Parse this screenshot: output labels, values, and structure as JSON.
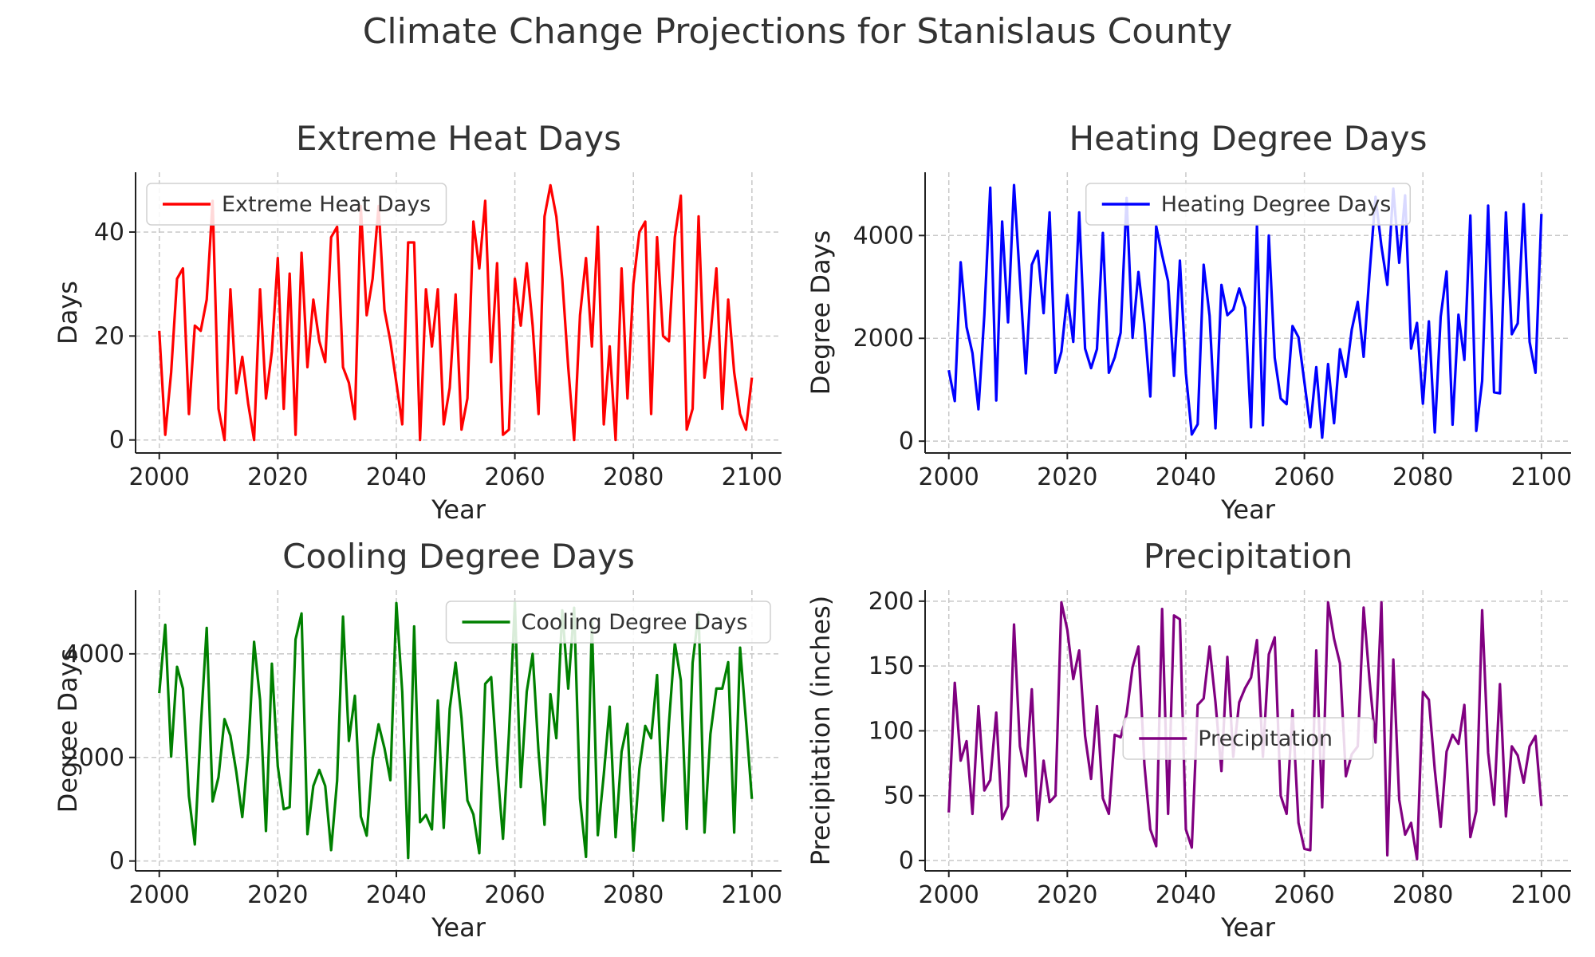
{
  "figure": {
    "title": "Climate Change Projections for Stanislaus County"
  },
  "chart_data": [
    {
      "type": "line",
      "title": "Extreme Heat Days",
      "xlabel": "Year",
      "ylabel": "Days",
      "color": "#ff0000",
      "legend": {
        "label": "Extreme Heat Days",
        "placement": "upper-left"
      },
      "grid": true,
      "xlim": [
        1996,
        2105
      ],
      "ylim": [
        -2.5,
        51.5
      ],
      "xticks": [
        2000,
        2020,
        2040,
        2060,
        2080,
        2100
      ],
      "yticks": [
        0,
        20,
        40
      ],
      "x": [
        2000,
        2001,
        2002,
        2003,
        2004,
        2005,
        2006,
        2007,
        2008,
        2009,
        2010,
        2011,
        2012,
        2013,
        2014,
        2015,
        2016,
        2017,
        2018,
        2019,
        2020,
        2021,
        2022,
        2023,
        2024,
        2025,
        2026,
        2027,
        2028,
        2029,
        2030,
        2031,
        2032,
        2033,
        2034,
        2035,
        2036,
        2037,
        2038,
        2039,
        2040,
        2041,
        2042,
        2043,
        2044,
        2045,
        2046,
        2047,
        2048,
        2049,
        2050,
        2051,
        2052,
        2053,
        2054,
        2055,
        2056,
        2057,
        2058,
        2059,
        2060,
        2061,
        2062,
        2063,
        2064,
        2065,
        2066,
        2067,
        2068,
        2069,
        2070,
        2071,
        2072,
        2073,
        2074,
        2075,
        2076,
        2077,
        2078,
        2079,
        2080,
        2081,
        2082,
        2083,
        2084,
        2085,
        2086,
        2087,
        2088,
        2089,
        2090,
        2091,
        2092,
        2093,
        2094,
        2095,
        2096,
        2097,
        2098,
        2099,
        2100
      ],
      "values": [
        21,
        1,
        13,
        31,
        33,
        5,
        22,
        21,
        27,
        46,
        6,
        0,
        29,
        9,
        16,
        7,
        0,
        29,
        8,
        17,
        35,
        6,
        32,
        1,
        36,
        14,
        27,
        19,
        15,
        39,
        41,
        14,
        11,
        4,
        45,
        24,
        31,
        45,
        25,
        19,
        11,
        3,
        38,
        38,
        0,
        29,
        18,
        29,
        3,
        10,
        28,
        2,
        8,
        42,
        33,
        46,
        15,
        34,
        1,
        2,
        31,
        22,
        34,
        22,
        5,
        43,
        49,
        43,
        31,
        14,
        0,
        24,
        35,
        18,
        41,
        3,
        18,
        0,
        33,
        8,
        30,
        40,
        42,
        5,
        39,
        20,
        19,
        39,
        47,
        2,
        6,
        43,
        12,
        20,
        33,
        6,
        27,
        13,
        5,
        2,
        12
      ]
    },
    {
      "type": "line",
      "title": "Heating Degree Days",
      "xlabel": "Year",
      "ylabel": "Degree Days",
      "color": "#0000ff",
      "legend": {
        "label": "Heating Degree Days",
        "placement": "upper-center"
      },
      "grid": true,
      "xlim": [
        1996,
        2105
      ],
      "ylim": [
        -230,
        5230
      ],
      "xticks": [
        2000,
        2020,
        2040,
        2060,
        2080,
        2100
      ],
      "yticks": [
        0,
        2000,
        4000
      ],
      "x": [
        2000,
        2001,
        2002,
        2003,
        2004,
        2005,
        2006,
        2007,
        2008,
        2009,
        2010,
        2011,
        2012,
        2013,
        2014,
        2015,
        2016,
        2017,
        2018,
        2019,
        2020,
        2021,
        2022,
        2023,
        2024,
        2025,
        2026,
        2027,
        2028,
        2029,
        2030,
        2031,
        2032,
        2033,
        2034,
        2035,
        2036,
        2037,
        2038,
        2039,
        2040,
        2041,
        2042,
        2043,
        2044,
        2045,
        2046,
        2047,
        2048,
        2049,
        2050,
        2051,
        2052,
        2053,
        2054,
        2055,
        2056,
        2057,
        2058,
        2059,
        2060,
        2061,
        2062,
        2063,
        2064,
        2065,
        2066,
        2067,
        2068,
        2069,
        2070,
        2071,
        2072,
        2073,
        2074,
        2075,
        2076,
        2077,
        2078,
        2079,
        2080,
        2081,
        2082,
        2083,
        2084,
        2085,
        2086,
        2087,
        2088,
        2089,
        2090,
        2091,
        2092,
        2093,
        2094,
        2095,
        2096,
        2097,
        2098,
        2099,
        2100
      ],
      "values": [
        1380,
        780,
        3480,
        2220,
        1710,
        620,
        2460,
        4930,
        790,
        4270,
        2310,
        4980,
        3140,
        1320,
        3430,
        3700,
        2490,
        4450,
        1330,
        1740,
        2840,
        1930,
        4450,
        1800,
        1420,
        1790,
        4050,
        1330,
        1630,
        2110,
        4730,
        2010,
        3290,
        2280,
        870,
        4180,
        3620,
        3110,
        1270,
        3510,
        1320,
        130,
        330,
        3430,
        2440,
        250,
        3040,
        2450,
        2560,
        2970,
        2600,
        270,
        4190,
        310,
        4000,
        1620,
        830,
        720,
        2240,
        2020,
        1150,
        270,
        1440,
        70,
        1500,
        350,
        1790,
        1250,
        2170,
        2710,
        1640,
        3260,
        4750,
        3790,
        3040,
        4910,
        3470,
        4780,
        1800,
        2300,
        730,
        2330,
        170,
        2420,
        3300,
        320,
        2460,
        1580,
        4390,
        200,
        1170,
        4580,
        950,
        930,
        4450,
        2080,
        2290,
        4610,
        1930,
        1330,
        4420
      ]
    },
    {
      "type": "line",
      "title": "Cooling Degree Days",
      "xlabel": "Year",
      "ylabel": "Degree Days",
      "color": "#008000",
      "legend": {
        "label": "Cooling Degree Days",
        "placement": "upper-right"
      },
      "grid": true,
      "xlim": [
        1996,
        2105
      ],
      "ylim": [
        -190,
        5230
      ],
      "xticks": [
        2000,
        2020,
        2040,
        2060,
        2080,
        2100
      ],
      "yticks": [
        0,
        2000,
        4000
      ],
      "x": [
        2000,
        2001,
        2002,
        2003,
        2004,
        2005,
        2006,
        2007,
        2008,
        2009,
        2010,
        2011,
        2012,
        2013,
        2014,
        2015,
        2016,
        2017,
        2018,
        2019,
        2020,
        2021,
        2022,
        2023,
        2024,
        2025,
        2026,
        2027,
        2028,
        2029,
        2030,
        2031,
        2032,
        2033,
        2034,
        2035,
        2036,
        2037,
        2038,
        2039,
        2040,
        2041,
        2042,
        2043,
        2044,
        2045,
        2046,
        2047,
        2048,
        2049,
        2050,
        2051,
        2052,
        2053,
        2054,
        2055,
        2056,
        2057,
        2058,
        2059,
        2060,
        2061,
        2062,
        2063,
        2064,
        2065,
        2066,
        2067,
        2068,
        2069,
        2070,
        2071,
        2072,
        2073,
        2074,
        2075,
        2076,
        2077,
        2078,
        2079,
        2080,
        2081,
        2082,
        2083,
        2084,
        2085,
        2086,
        2087,
        2088,
        2089,
        2090,
        2091,
        2092,
        2093,
        2094,
        2095,
        2096,
        2097,
        2098,
        2099,
        2100
      ],
      "values": [
        3240,
        4560,
        2020,
        3750,
        3330,
        1250,
        320,
        2580,
        4500,
        1150,
        1620,
        2740,
        2420,
        1720,
        850,
        2080,
        4230,
        3110,
        580,
        3810,
        1830,
        1000,
        1040,
        4280,
        4780,
        520,
        1450,
        1760,
        1450,
        210,
        1550,
        4720,
        2320,
        3190,
        860,
        490,
        1970,
        2640,
        2180,
        1560,
        4980,
        3260,
        60,
        4530,
        750,
        890,
        610,
        3100,
        640,
        2940,
        3830,
        2760,
        1170,
        900,
        150,
        3420,
        3550,
        1860,
        430,
        2460,
        4990,
        1430,
        3270,
        4000,
        2100,
        700,
        3220,
        2370,
        4840,
        3330,
        4890,
        1200,
        80,
        4620,
        500,
        1670,
        2980,
        460,
        2110,
        2650,
        200,
        1780,
        2610,
        2370,
        3590,
        780,
        2660,
        4210,
        3490,
        620,
        3830,
        4800,
        550,
        2450,
        3330,
        3330,
        3840,
        550,
        4120,
        2700,
        1200
      ]
    },
    {
      "type": "line",
      "title": "Precipitation",
      "xlabel": "Year",
      "ylabel": "Precipitation (inches)",
      "color": "#800080",
      "legend": {
        "label": "Precipitation",
        "placement": "center"
      },
      "grid": true,
      "xlim": [
        1996,
        2105
      ],
      "ylim": [
        -8,
        208.5
      ],
      "xticks": [
        2000,
        2020,
        2040,
        2060,
        2080,
        2100
      ],
      "yticks": [
        0,
        50,
        100,
        150,
        200
      ],
      "x": [
        2000,
        2001,
        2002,
        2003,
        2004,
        2005,
        2006,
        2007,
        2008,
        2009,
        2010,
        2011,
        2012,
        2013,
        2014,
        2015,
        2016,
        2017,
        2018,
        2019,
        2020,
        2021,
        2022,
        2023,
        2024,
        2025,
        2026,
        2027,
        2028,
        2029,
        2030,
        2031,
        2032,
        2033,
        2034,
        2035,
        2036,
        2037,
        2038,
        2039,
        2040,
        2041,
        2042,
        2043,
        2044,
        2045,
        2046,
        2047,
        2048,
        2049,
        2050,
        2051,
        2052,
        2053,
        2054,
        2055,
        2056,
        2057,
        2058,
        2059,
        2060,
        2061,
        2062,
        2063,
        2064,
        2065,
        2066,
        2067,
        2068,
        2069,
        2070,
        2071,
        2072,
        2073,
        2074,
        2075,
        2076,
        2077,
        2078,
        2079,
        2080,
        2081,
        2082,
        2083,
        2084,
        2085,
        2086,
        2087,
        2088,
        2089,
        2090,
        2091,
        2092,
        2093,
        2094,
        2095,
        2096,
        2097,
        2098,
        2099,
        2100
      ],
      "values": [
        37,
        137,
        77,
        92,
        36,
        119,
        54,
        62,
        114,
        32,
        42,
        182,
        88,
        65,
        132,
        31,
        77,
        45,
        50,
        199,
        178,
        140,
        162,
        96,
        63,
        119,
        48,
        36,
        97,
        95,
        113,
        149,
        165,
        74,
        24,
        11,
        194,
        36,
        189,
        186,
        24,
        10,
        120,
        125,
        165,
        122,
        69,
        157,
        80,
        122,
        133,
        141,
        170,
        80,
        159,
        172,
        50,
        36,
        116,
        29,
        9,
        8,
        162,
        41,
        199,
        171,
        152,
        65,
        82,
        88,
        195,
        139,
        91,
        199,
        4,
        155,
        47,
        20,
        29,
        1,
        130,
        124,
        70,
        26,
        84,
        97,
        90,
        120,
        18,
        38,
        193,
        83,
        43,
        136,
        34,
        88,
        81,
        60,
        88,
        96,
        42
      ]
    }
  ]
}
